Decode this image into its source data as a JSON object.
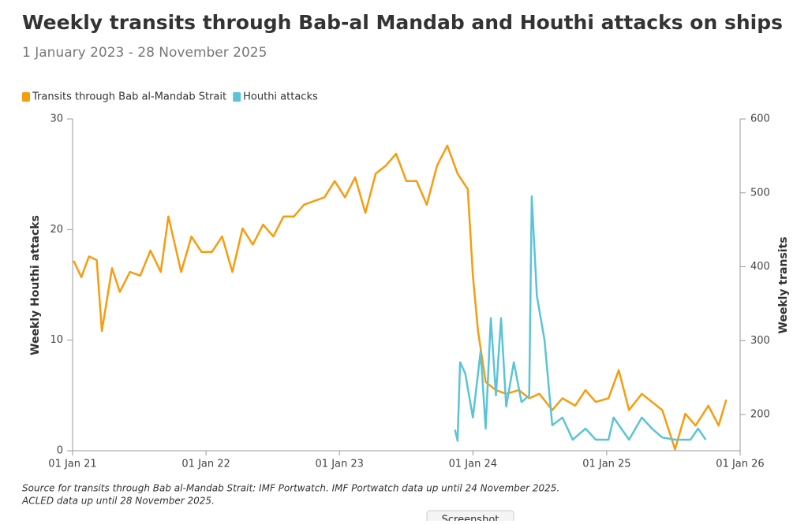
{
  "chart_data": {
    "type": "line",
    "title": "Weekly transits through Bab-al Mandab and Houthi attacks on ships",
    "subtitle": "1 January 2023 - 28 November 2025",
    "y_label": "Weekly Houthi attacks",
    "y2_label": "Weekly transits",
    "notes": [
      "Source for transits through Bab al-Mandab Strait: IMF Portwatch. IMF Portwatch data up until 24 November 2025.",
      "ACLED data up until 28 November 2025."
    ],
    "xlim": [
      "2021-01-01",
      "2026-01-01"
    ],
    "xticks": [
      {
        "value": "2021-01-01",
        "label": "01 Jan 21"
      },
      {
        "value": "2022-01-01",
        "label": "01 Jan 22"
      },
      {
        "value": "2023-01-01",
        "label": "01 Jan 23"
      },
      {
        "value": "2024-01-01",
        "label": "01 Jan 24"
      },
      {
        "value": "2025-01-01",
        "label": "01 Jan 25"
      },
      {
        "value": "2026-01-01",
        "label": "01 Jan 26"
      }
    ],
    "ylim": [
      0,
      30
    ],
    "yticks": [
      0,
      10,
      20,
      30
    ],
    "y2lim": [
      151,
      600
    ],
    "y2ticks": [
      200,
      300,
      400,
      500,
      600
    ],
    "legend": "top-left",
    "series": [
      {
        "name": "Transits through Bab al-Mandab Strait",
        "color": "#f89c0e",
        "axis": "y2",
        "x": [
          "2021-01-04",
          "2021-01-25",
          "2021-02-15",
          "2021-03-08",
          "2021-03-22",
          "2021-04-19",
          "2021-05-10",
          "2021-06-07",
          "2021-07-05",
          "2021-08-02",
          "2021-08-30",
          "2021-09-20",
          "2021-10-25",
          "2021-11-22",
          "2021-12-20",
          "2022-01-17",
          "2022-02-14",
          "2022-03-14",
          "2022-04-11",
          "2022-05-09",
          "2022-06-06",
          "2022-07-04",
          "2022-08-01",
          "2022-08-29",
          "2022-09-26",
          "2022-10-24",
          "2022-11-21",
          "2022-12-19",
          "2023-01-16",
          "2023-02-13",
          "2023-03-13",
          "2023-04-10",
          "2023-05-08",
          "2023-06-05",
          "2023-07-03",
          "2023-07-31",
          "2023-08-28",
          "2023-09-25",
          "2023-10-23",
          "2023-11-20",
          "2023-12-18",
          "2024-01-01",
          "2024-01-15",
          "2024-02-05",
          "2024-03-04",
          "2024-04-01",
          "2024-05-06",
          "2024-06-03",
          "2024-07-01",
          "2024-08-05",
          "2024-09-02",
          "2024-10-07",
          "2024-11-04",
          "2024-12-02",
          "2025-01-06",
          "2025-02-03",
          "2025-03-03",
          "2025-04-07",
          "2025-05-05",
          "2025-06-02",
          "2025-07-07",
          "2025-08-04",
          "2025-09-01",
          "2025-10-06",
          "2025-11-03",
          "2025-11-24"
        ],
        "values": [
          408,
          386,
          414,
          409,
          313,
          398,
          366,
          393,
          388,
          422,
          393,
          468,
          393,
          441,
          420,
          420,
          441,
          393,
          452,
          430,
          457,
          441,
          468,
          468,
          484,
          489,
          494,
          516,
          494,
          521,
          473,
          526,
          537,
          553,
          516,
          516,
          484,
          537,
          564,
          526,
          505,
          388,
          313,
          244,
          233,
          228,
          233,
          222,
          228,
          206,
          222,
          212,
          233,
          217,
          222,
          260,
          206,
          228,
          217,
          206,
          153,
          201,
          185,
          212,
          185,
          220
        ]
      },
      {
        "name": "Houthi attacks",
        "color": "#5bc4d6",
        "axis": "y",
        "x": [
          "2023-11-13",
          "2023-11-20",
          "2023-11-27",
          "2023-12-11",
          "2024-01-01",
          "2024-01-22",
          "2024-02-05",
          "2024-02-19",
          "2024-03-04",
          "2024-03-18",
          "2024-04-01",
          "2024-04-22",
          "2024-05-13",
          "2024-06-03",
          "2024-06-10",
          "2024-06-24",
          "2024-07-15",
          "2024-08-05",
          "2024-09-02",
          "2024-09-30",
          "2024-11-04",
          "2024-12-02",
          "2025-01-06",
          "2025-01-20",
          "2025-03-03",
          "2025-04-07",
          "2025-05-05",
          "2025-06-02",
          "2025-07-07",
          "2025-08-18",
          "2025-09-08",
          "2025-09-29"
        ],
        "values": [
          1.9,
          0.9,
          8,
          7,
          3,
          9,
          2,
          12,
          5,
          12,
          4,
          8,
          4.4,
          5,
          23,
          14,
          10,
          2.3,
          3,
          1,
          2,
          1,
          1,
          3,
          1,
          3,
          2,
          1.2,
          1,
          1,
          2,
          1
        ]
      }
    ]
  },
  "ui": {
    "button": "Screenshot"
  }
}
